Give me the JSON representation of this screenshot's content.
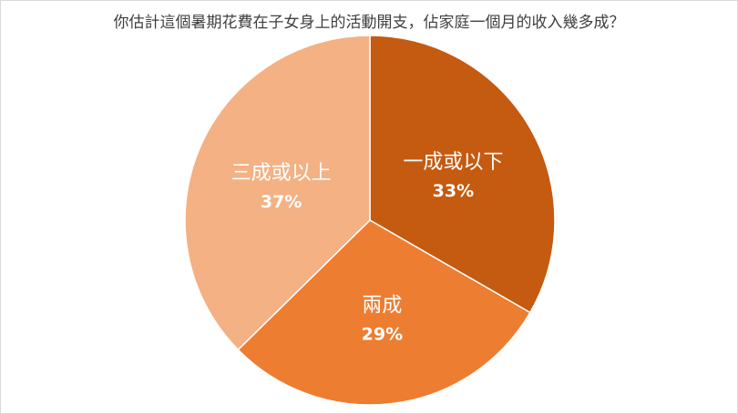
{
  "chart_data": {
    "type": "pie",
    "title": "你估計這個暑期花費在子女身上的活動開支，佔家庭一個月的收入幾多成？",
    "categories": [
      "一成或以下",
      "兩成",
      "三成或以上"
    ],
    "values": [
      33,
      29,
      37
    ],
    "value_labels": [
      "33%",
      "29%",
      "37%"
    ],
    "colors": [
      "#c55a11",
      "#ed7d31",
      "#f4b183"
    ],
    "start_angle_deg": 0,
    "direction": "clockwise",
    "legend": "none"
  }
}
